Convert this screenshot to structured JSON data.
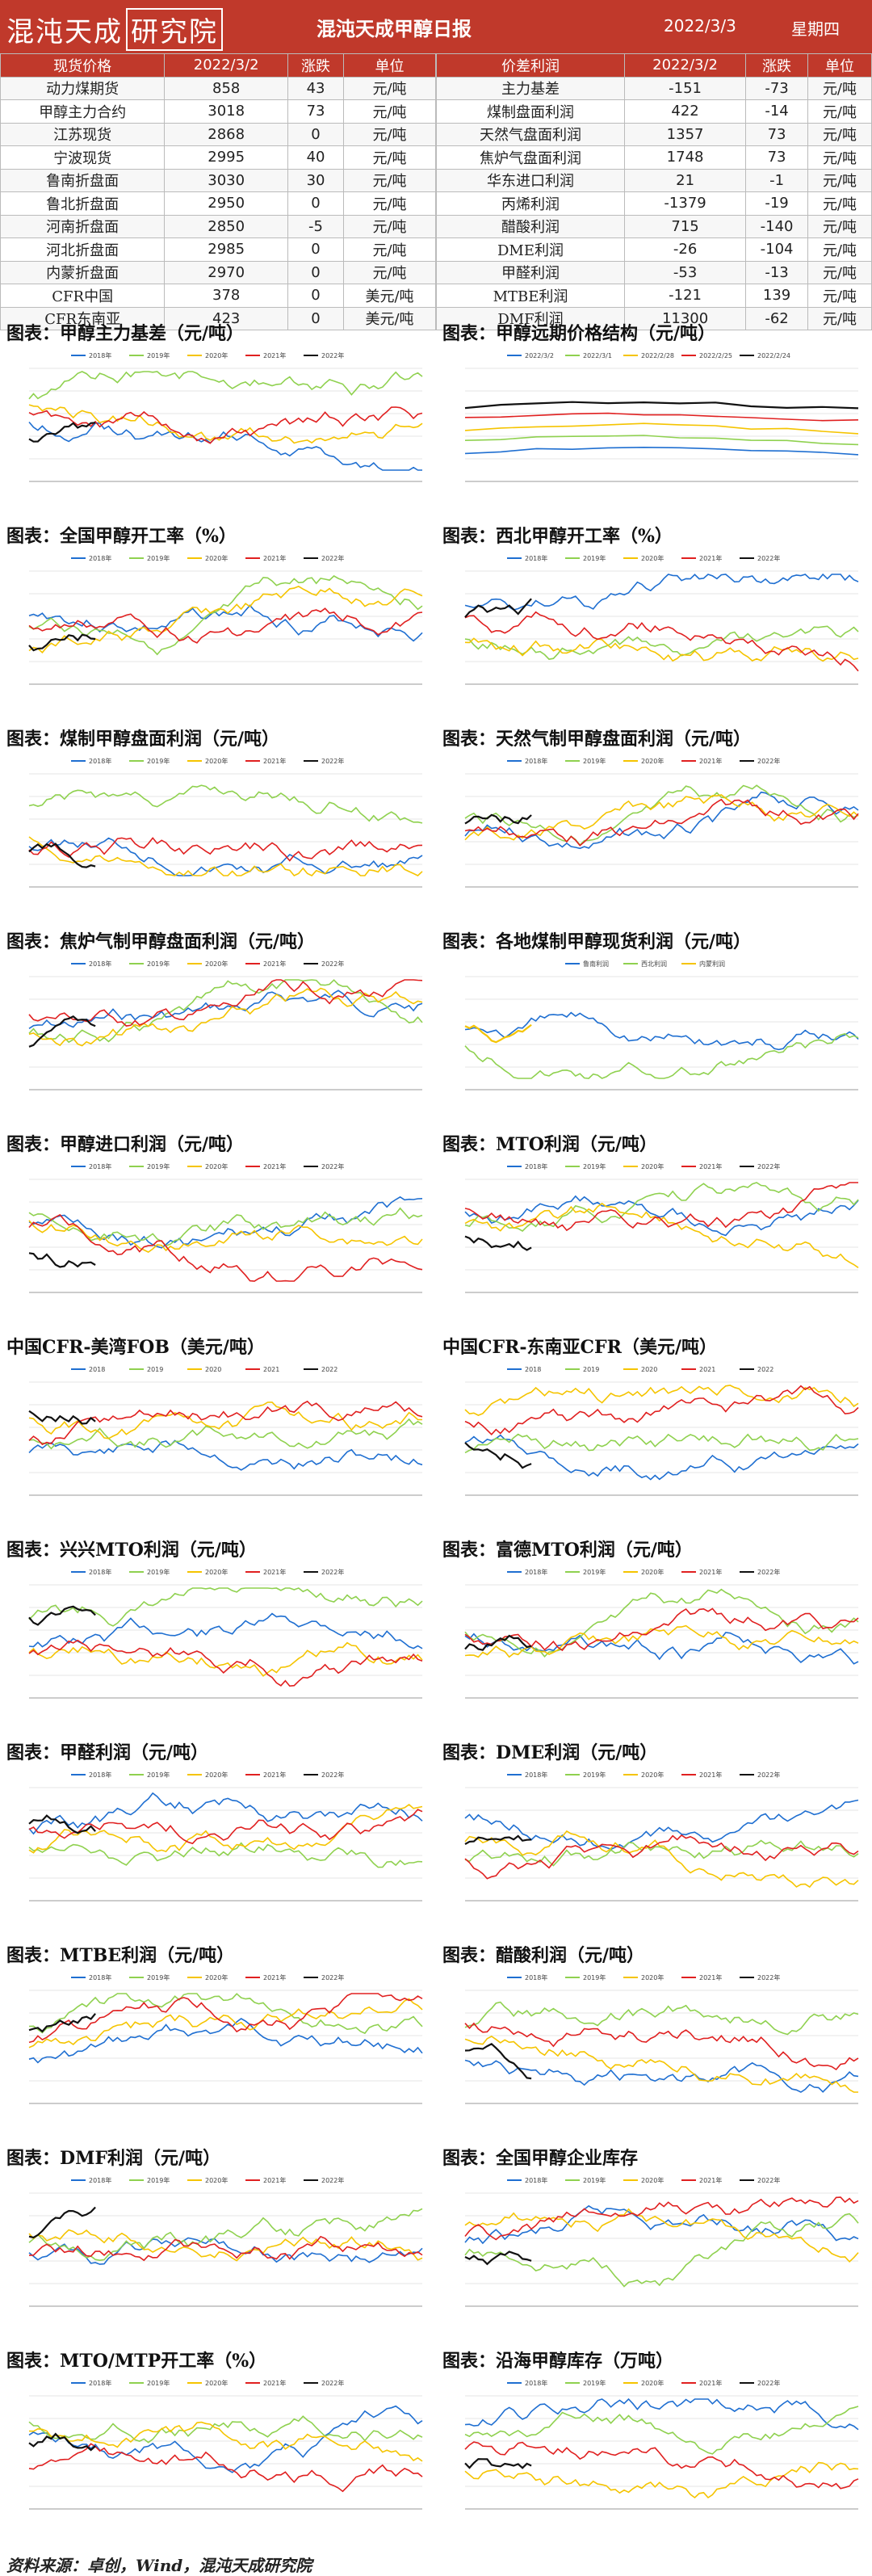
{
  "header": {
    "logo_text": "混沌天成",
    "logo_suffix": "研究院",
    "title": "混沌天成甲醇日报",
    "date": "2022/3/3",
    "weekday": "星期四"
  },
  "tables": {
    "left": {
      "headers": [
        "现货价格",
        "2022/3/2",
        "涨跌",
        "单位"
      ],
      "rows": [
        [
          "动力煤期货",
          "858",
          "43",
          "元/吨"
        ],
        [
          "甲醇主力合约",
          "3018",
          "73",
          "元/吨"
        ],
        [
          "江苏现货",
          "2868",
          "0",
          "元/吨"
        ],
        [
          "宁波现货",
          "2995",
          "40",
          "元/吨"
        ],
        [
          "鲁南折盘面",
          "3030",
          "30",
          "元/吨"
        ],
        [
          "鲁北折盘面",
          "2950",
          "0",
          "元/吨"
        ],
        [
          "河南折盘面",
          "2850",
          "-5",
          "元/吨"
        ],
        [
          "河北折盘面",
          "2985",
          "0",
          "元/吨"
        ],
        [
          "内蒙折盘面",
          "2970",
          "0",
          "元/吨"
        ],
        [
          "CFR中国",
          "378",
          "0",
          "美元/吨"
        ],
        [
          "CFR东南亚",
          "423",
          "0",
          "美元/吨"
        ]
      ]
    },
    "right": {
      "headers": [
        "价差利润",
        "2022/3/2",
        "涨跌",
        "单位"
      ],
      "rows": [
        [
          "主力基差",
          "-151",
          "-73",
          "元/吨"
        ],
        [
          "煤制盘面利润",
          "422",
          "-14",
          "元/吨"
        ],
        [
          "天然气盘面利润",
          "1357",
          "73",
          "元/吨"
        ],
        [
          "焦炉气盘面利润",
          "1748",
          "73",
          "元/吨"
        ],
        [
          "华东进口利润",
          "21",
          "-1",
          "元/吨"
        ],
        [
          "丙烯利润",
          "-1379",
          "-19",
          "元/吨"
        ],
        [
          "醋酸利润",
          "715",
          "-140",
          "元/吨"
        ],
        [
          "DME利润",
          "-26",
          "-104",
          "元/吨"
        ],
        [
          "甲醛利润",
          "-53",
          "-13",
          "元/吨"
        ],
        [
          "MTBE利润",
          "-121",
          "139",
          "元/吨"
        ],
        [
          "DMF利润",
          "11300",
          "-62",
          "元/吨"
        ]
      ]
    }
  },
  "colors": {
    "header_bg": "#c0392b",
    "series_2018": "#1f6fd1",
    "series_2019": "#8fd14f",
    "series_2020": "#f5c400",
    "series_2021": "#e02020",
    "series_2022": "#111111",
    "series_grey": "#999999"
  },
  "charts": [
    {
      "title": "图表：甲醇主力基差（元/吨）",
      "legend": [
        "2018年",
        "2019年",
        "2020年",
        "2021年",
        "2022年"
      ]
    },
    {
      "title": "图表：甲醇远期价格结构（元/吨）",
      "legend": [
        "2022/3/2",
        "2022/3/1",
        "2022/2/28",
        "2022/2/25",
        "2022/2/24"
      ]
    },
    {
      "title": "图表：全国甲醇开工率（%）",
      "legend": [
        "2018年",
        "2019年",
        "2020年",
        "2021年",
        "2022年"
      ]
    },
    {
      "title": "图表：西北甲醇开工率（%）",
      "legend": [
        "2018年",
        "2019年",
        "2020年",
        "2021年",
        "2022年"
      ]
    },
    {
      "title": "图表：煤制甲醇盘面利润（元/吨）",
      "legend": [
        "2018年",
        "2019年",
        "2020年",
        "2021年",
        "2022年"
      ]
    },
    {
      "title": "图表：天然气制甲醇盘面利润（元/吨）",
      "legend": [
        "2018年",
        "2019年",
        "2020年",
        "2021年",
        "2022年"
      ]
    },
    {
      "title": "图表：焦炉气制甲醇盘面利润（元/吨）",
      "legend": [
        "2018年",
        "2019年",
        "2020年",
        "2021年",
        "2022年"
      ]
    },
    {
      "title": "图表：各地煤制甲醇现货利润（元/吨）",
      "legend": [
        "鲁南利润",
        "西北利润",
        "内蒙利润"
      ]
    },
    {
      "title": "图表：甲醇进口利润（元/吨）",
      "legend": [
        "2018年",
        "2019年",
        "2020年",
        "2021年",
        "2022年"
      ]
    },
    {
      "title": "图表：MTO利润（元/吨）",
      "legend": [
        "2018年",
        "2019年",
        "2020年",
        "2021年",
        "2022年"
      ]
    },
    {
      "title": "中国CFR-美湾FOB（美元/吨）",
      "legend": [
        "2018",
        "2019",
        "2020",
        "2021",
        "2022"
      ]
    },
    {
      "title": "中国CFR-东南亚CFR（美元/吨）",
      "legend": [
        "2018",
        "2019",
        "2020",
        "2021",
        "2022"
      ]
    },
    {
      "title": "图表：兴兴MTO利润（元/吨）",
      "legend": [
        "2018年",
        "2019年",
        "2020年",
        "2021年",
        "2022年"
      ]
    },
    {
      "title": "图表：富德MTO利润（元/吨）",
      "legend": [
        "2018年",
        "2019年",
        "2020年",
        "2021年",
        "2022年"
      ]
    },
    {
      "title": "图表：甲醛利润（元/吨）",
      "legend": [
        "2018年",
        "2019年",
        "2020年",
        "2021年",
        "2022年"
      ]
    },
    {
      "title": "图表：DME利润（元/吨）",
      "legend": [
        "2018年",
        "2019年",
        "2020年",
        "2021年",
        "2022年"
      ]
    },
    {
      "title": "图表：MTBE利润（元/吨）",
      "legend": [
        "2018年",
        "2019年",
        "2020年",
        "2021年",
        "2022年"
      ]
    },
    {
      "title": "图表：醋酸利润（元/吨）",
      "legend": [
        "2018年",
        "2019年",
        "2020年",
        "2021年",
        "2022年"
      ]
    },
    {
      "title": "图表：DMF利润（元/吨）",
      "legend": [
        "2018年",
        "2019年",
        "2020年",
        "2021年",
        "2022年"
      ]
    },
    {
      "title": "图表：全国甲醇企业库存",
      "legend": [
        "2018年",
        "2019年",
        "2020年",
        "2021年",
        "2022年"
      ]
    },
    {
      "title": "图表：MTO/MTP开工率（%）",
      "legend": [
        "2018年",
        "2019年",
        "2020年",
        "2021年",
        "2022年"
      ]
    },
    {
      "title": "图表：沿海甲醇库存（万吨）",
      "legend": [
        "2018年",
        "2019年",
        "2020年",
        "2021年",
        "2022年"
      ]
    }
  ],
  "footer": "资料来源：卓创，Wind，混沌天成研究院"
}
